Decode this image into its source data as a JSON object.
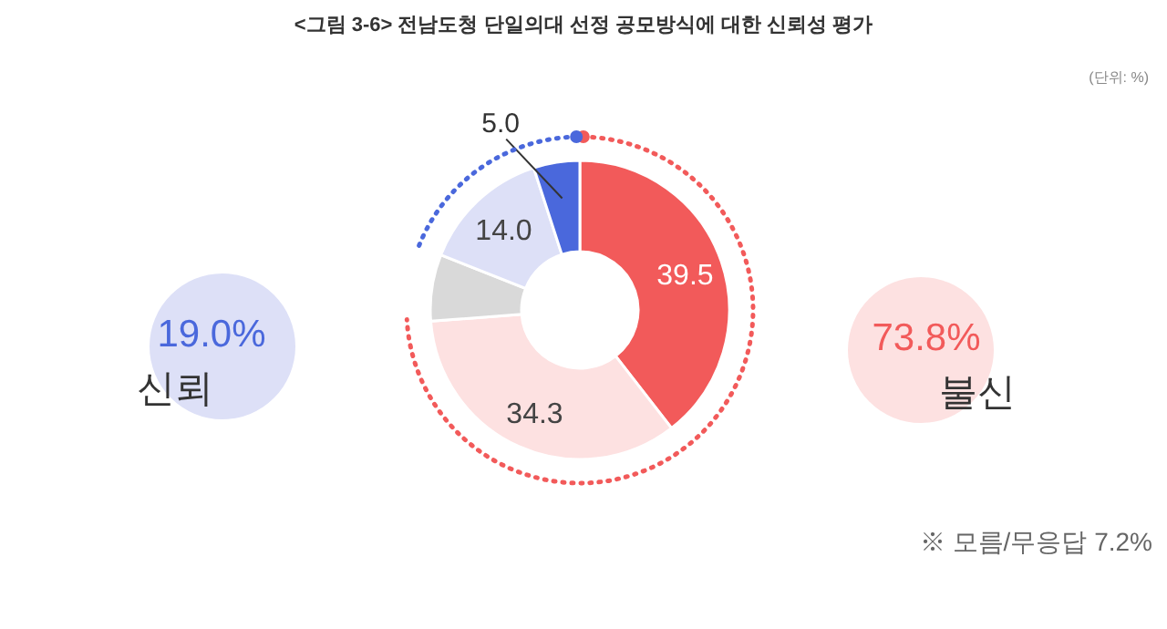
{
  "chart_data": {
    "type": "donut",
    "title": "<그림 3-6> 전남도청 단일의대 선정 공모방식에 대한 신뢰성 평가",
    "categories": [
      null,
      null,
      null,
      null,
      null
    ],
    "values": [
      39.5,
      34.3,
      7.2,
      14.0,
      5.0
    ],
    "colors": [
      "#f25a5a",
      "#fde1e1",
      "#d9d9d9",
      "#dde0f7",
      "#4a68dc"
    ],
    "value_labels": [
      "39.5",
      "34.3",
      null,
      "14.0",
      "5.0"
    ],
    "annotations": [
      "19.0%",
      "신뢰",
      "73.8%",
      "불신",
      "※ 모름/무응답 7.2%",
      "(단위: %)"
    ]
  }
}
